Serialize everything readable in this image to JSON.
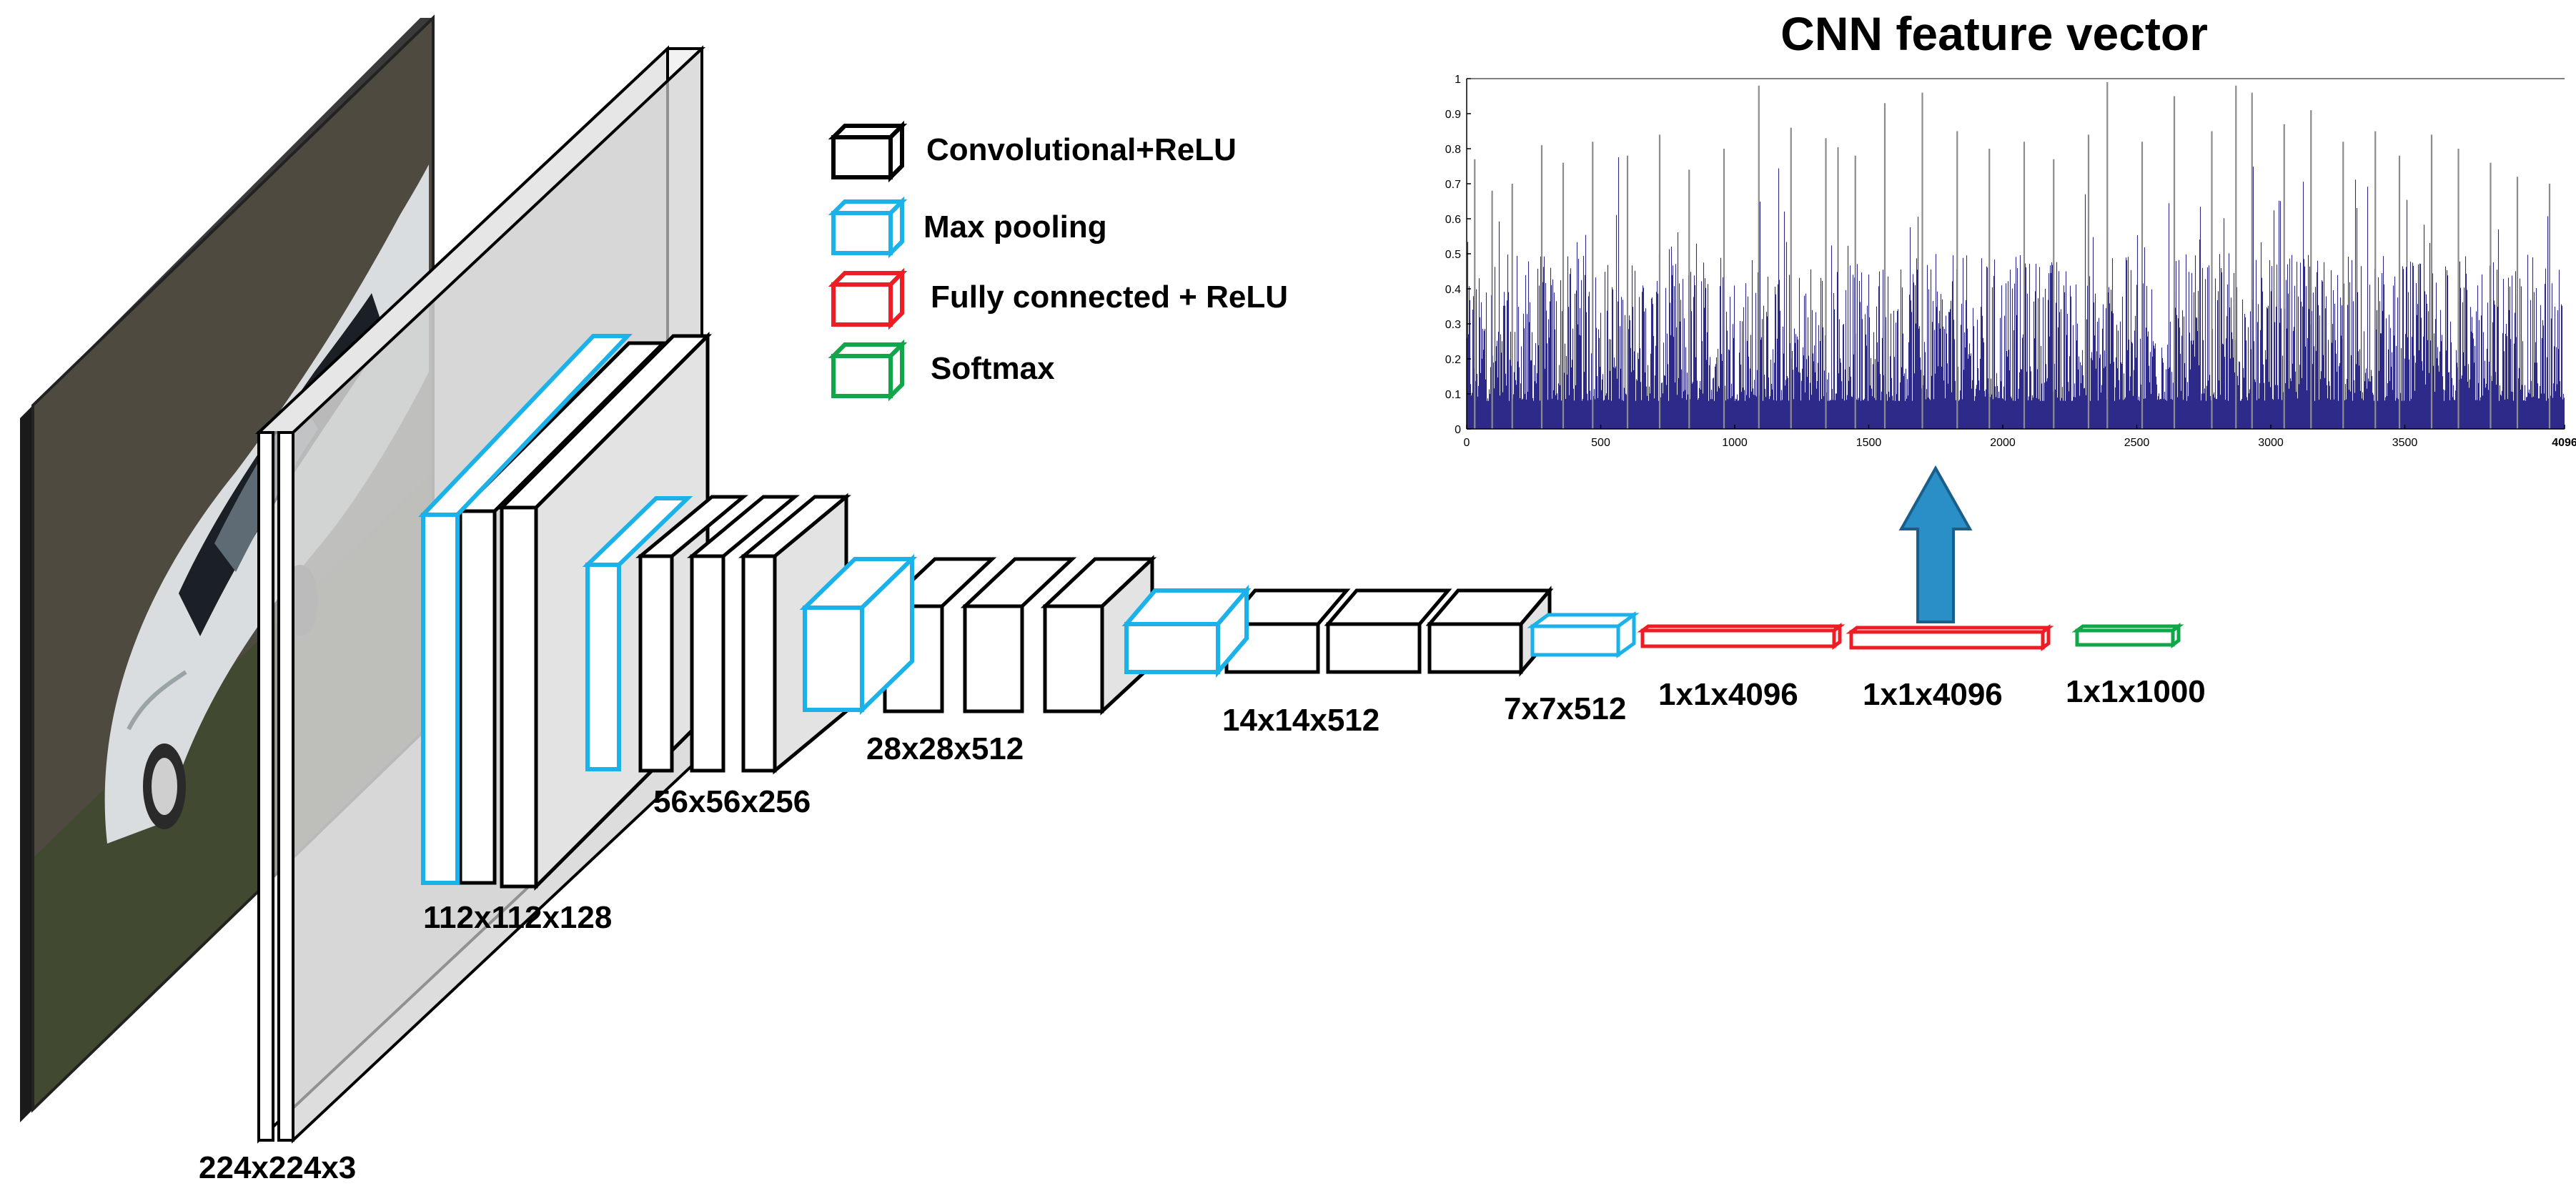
{
  "legend": {
    "items": [
      {
        "label": "Convolutional+ReLU",
        "color": "#000000",
        "icon": "black-cube-icon"
      },
      {
        "label": "Max pooling",
        "color": "#1ab2e8",
        "icon": "cyan-cube-icon"
      },
      {
        "label": "Fully connected + ReLU",
        "color": "#ee1c24",
        "icon": "red-cube-icon"
      },
      {
        "label": "Softmax",
        "color": "#10a64a",
        "icon": "green-cube-icon"
      }
    ]
  },
  "layer_labels": {
    "input": "224x224x3",
    "block1": "112x112x128",
    "block2": "56x56x256",
    "block3": "28x28x512",
    "block4": "14x14x512",
    "block5": "7x7x512",
    "fc1": "1x1x4096",
    "fc2": "1x1x4096",
    "softmax": "1x1x1000"
  },
  "chart_data": {
    "type": "bar",
    "title": "CNN feature vector",
    "xlim": [
      0,
      4096
    ],
    "ylim": [
      0,
      1
    ],
    "x_ticks": [
      "0",
      "500",
      "1000",
      "1500",
      "2000",
      "2500",
      "3000",
      "3500",
      "4096"
    ],
    "y_ticks": [
      "0",
      "0.1",
      "0.2",
      "0.3",
      "0.4",
      "0.5",
      "0.6",
      "0.7",
      "0.8",
      "0.9",
      "1"
    ],
    "bar_color": "#2e2a8a",
    "spike_color": "#8c8c8c",
    "n_bars": 4096,
    "note_values": "dense 4096-dim activation vector; values estimated as noisy baseline ~0.1-0.5 with sparse tall spikes",
    "spikes": [
      {
        "x": 30,
        "y": 0.77
      },
      {
        "x": 95,
        "y": 0.68
      },
      {
        "x": 170,
        "y": 0.7
      },
      {
        "x": 280,
        "y": 0.81
      },
      {
        "x": 360,
        "y": 0.76
      },
      {
        "x": 470,
        "y": 0.82
      },
      {
        "x": 600,
        "y": 0.78
      },
      {
        "x": 720,
        "y": 0.84
      },
      {
        "x": 830,
        "y": 0.74
      },
      {
        "x": 960,
        "y": 0.8
      },
      {
        "x": 1090,
        "y": 0.98
      },
      {
        "x": 1210,
        "y": 0.86
      },
      {
        "x": 1340,
        "y": 0.83
      },
      {
        "x": 1450,
        "y": 0.78
      },
      {
        "x": 1560,
        "y": 0.93
      },
      {
        "x": 1700,
        "y": 0.96
      },
      {
        "x": 1830,
        "y": 0.85
      },
      {
        "x": 1950,
        "y": 0.8
      },
      {
        "x": 2080,
        "y": 0.82
      },
      {
        "x": 2190,
        "y": 0.77
      },
      {
        "x": 2320,
        "y": 0.84
      },
      {
        "x": 2390,
        "y": 0.99
      },
      {
        "x": 2520,
        "y": 0.82
      },
      {
        "x": 2640,
        "y": 0.95
      },
      {
        "x": 2780,
        "y": 0.85
      },
      {
        "x": 2870,
        "y": 0.98
      },
      {
        "x": 2930,
        "y": 0.96
      },
      {
        "x": 3050,
        "y": 0.87
      },
      {
        "x": 3150,
        "y": 0.91
      },
      {
        "x": 3270,
        "y": 0.82
      },
      {
        "x": 3390,
        "y": 0.85
      },
      {
        "x": 3480,
        "y": 0.78
      },
      {
        "x": 3600,
        "y": 0.84
      },
      {
        "x": 3700,
        "y": 0.8
      },
      {
        "x": 3820,
        "y": 0.76
      },
      {
        "x": 3920,
        "y": 0.72
      },
      {
        "x": 4040,
        "y": 0.7
      }
    ]
  }
}
